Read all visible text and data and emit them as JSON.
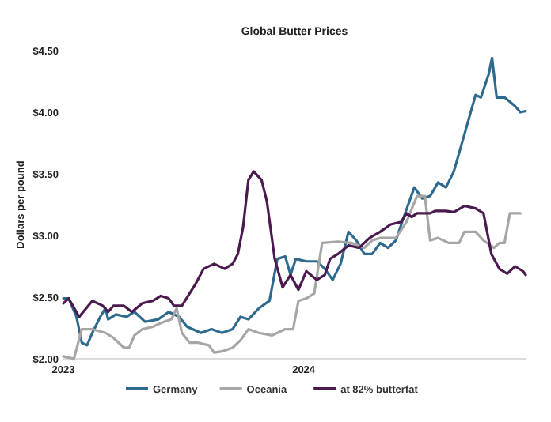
{
  "chart_data": {
    "type": "line",
    "title": "Global Butter Prices",
    "ylabel": "Dollars per pound",
    "xlim": [
      "2023-01-01",
      "2024-12-03"
    ],
    "xticks": [
      {
        "value": "2023-01-01",
        "label": "2023"
      },
      {
        "value": "2024-01-01",
        "label": "2024"
      }
    ],
    "ylim": [
      2,
      4.5
    ],
    "yticks": [
      {
        "value": 2,
        "label": "$2.00"
      },
      {
        "value": 2.5,
        "label": "$2.50"
      },
      {
        "value": 3,
        "label": "$3.00"
      },
      {
        "value": 3.5,
        "label": "$3.50"
      },
      {
        "value": 4,
        "label": "$4.00"
      },
      {
        "value": 4.5,
        "label": "$4.50"
      }
    ],
    "grid": false,
    "legend": "bottom",
    "marker": "none",
    "line_style": "solid",
    "series": [
      {
        "name": "Germany",
        "color": "#2e6a8e",
        "x": [
          "2023-01-01",
          "2023-01-09",
          "2023-01-21",
          "2023-01-29",
          "2023-02-06",
          "2023-02-14",
          "2023-02-26",
          "2023-03-06",
          "2023-03-10",
          "2023-03-22",
          "2023-04-07",
          "2023-04-19",
          "2023-05-05",
          "2023-05-25",
          "2023-06-10",
          "2023-06-26",
          "2023-07-08",
          "2023-07-29",
          "2023-08-14",
          "2023-08-30",
          "2023-09-15",
          "2023-09-27",
          "2023-10-09",
          "2023-10-25",
          "2023-11-10",
          "2023-11-22",
          "2023-12-04",
          "2023-12-12",
          "2023-12-20",
          "2024-01-05",
          "2024-01-21",
          "2024-02-02",
          "2024-02-14",
          "2024-02-26",
          "2024-03-09",
          "2024-03-21",
          "2024-04-02",
          "2024-04-14",
          "2024-04-26",
          "2024-05-08",
          "2024-05-20",
          "2024-06-01",
          "2024-06-17",
          "2024-06-29",
          "2024-07-11",
          "2024-07-23",
          "2024-08-04",
          "2024-08-16",
          "2024-09-01",
          "2024-09-18",
          "2024-09-26",
          "2024-10-08",
          "2024-10-13",
          "2024-10-20",
          "2024-11-01",
          "2024-11-17",
          "2024-11-25",
          "2024-12-03"
        ],
        "values": [
          2.49,
          2.49,
          2.34,
          2.13,
          2.11,
          2.21,
          2.34,
          2.41,
          2.32,
          2.36,
          2.34,
          2.38,
          2.3,
          2.32,
          2.38,
          2.34,
          2.26,
          2.21,
          2.24,
          2.21,
          2.24,
          2.34,
          2.32,
          2.41,
          2.47,
          2.81,
          2.83,
          2.68,
          2.81,
          2.79,
          2.79,
          2.73,
          2.64,
          2.77,
          3.03,
          2.96,
          2.85,
          2.85,
          2.94,
          2.9,
          2.96,
          3.15,
          3.39,
          3.3,
          3.32,
          3.43,
          3.39,
          3.52,
          3.82,
          4.14,
          4.12,
          4.31,
          4.44,
          4.12,
          4.12,
          4.05,
          4.0,
          4.01
        ]
      },
      {
        "name": "Oceania",
        "color": "#a6a6a6",
        "x": [
          "2023-01-01",
          "2023-01-17",
          "2023-01-29",
          "2023-02-14",
          "2023-03-06",
          "2023-03-18",
          "2023-03-26",
          "2023-04-03",
          "2023-04-11",
          "2023-04-19",
          "2023-05-01",
          "2023-05-17",
          "2023-05-29",
          "2023-06-14",
          "2023-06-22",
          "2023-06-30",
          "2023-07-12",
          "2023-07-25",
          "2023-08-10",
          "2023-08-18",
          "2023-08-30",
          "2023-09-15",
          "2023-09-27",
          "2023-10-09",
          "2023-10-25",
          "2023-11-14",
          "2023-12-04",
          "2023-12-16",
          "2023-12-24",
          "2024-01-05",
          "2024-01-17",
          "2024-01-29",
          "2024-02-22",
          "2024-03-13",
          "2024-04-02",
          "2024-04-14",
          "2024-04-26",
          "2024-05-20",
          "2024-06-05",
          "2024-06-21",
          "2024-07-03",
          "2024-07-11",
          "2024-07-23",
          "2024-08-08",
          "2024-08-24",
          "2024-09-01",
          "2024-09-18",
          "2024-09-30",
          "2024-10-16",
          "2024-10-24",
          "2024-11-01",
          "2024-11-09",
          "2024-11-25"
        ],
        "values": [
          2.02,
          2.0,
          2.24,
          2.24,
          2.21,
          2.17,
          2.13,
          2.09,
          2.09,
          2.19,
          2.24,
          2.26,
          2.29,
          2.32,
          2.41,
          2.21,
          2.13,
          2.13,
          2.11,
          2.05,
          2.06,
          2.09,
          2.15,
          2.24,
          2.21,
          2.19,
          2.24,
          2.24,
          2.47,
          2.49,
          2.53,
          2.94,
          2.95,
          2.94,
          2.9,
          2.96,
          2.98,
          2.98,
          3.11,
          3.32,
          3.32,
          2.96,
          2.98,
          2.94,
          2.94,
          3.03,
          3.03,
          2.96,
          2.9,
          2.94,
          2.94,
          3.18,
          3.18
        ]
      },
      {
        "name": "at 82% butterfat",
        "color": "#4b1a4f",
        "x": [
          "2023-01-01",
          "2023-01-09",
          "2023-01-25",
          "2023-02-14",
          "2023-03-02",
          "2023-03-10",
          "2023-03-18",
          "2023-04-03",
          "2023-04-15",
          "2023-05-01",
          "2023-05-17",
          "2023-05-29",
          "2023-06-10",
          "2023-06-18",
          "2023-06-30",
          "2023-07-20",
          "2023-08-02",
          "2023-08-18",
          "2023-09-03",
          "2023-09-15",
          "2023-09-23",
          "2023-10-01",
          "2023-10-09",
          "2023-10-17",
          "2023-10-29",
          "2023-11-06",
          "2023-11-18",
          "2023-11-30",
          "2023-12-12",
          "2023-12-24",
          "2024-01-05",
          "2024-01-21",
          "2024-02-02",
          "2024-02-10",
          "2024-02-22",
          "2024-03-09",
          "2024-03-25",
          "2024-04-10",
          "2024-04-26",
          "2024-05-12",
          "2024-05-28",
          "2024-06-05",
          "2024-06-13",
          "2024-06-21",
          "2024-07-11",
          "2024-07-19",
          "2024-08-04",
          "2024-08-16",
          "2024-09-01",
          "2024-09-18",
          "2024-09-30",
          "2024-10-12",
          "2024-10-24",
          "2024-11-05",
          "2024-11-17",
          "2024-11-29",
          "2024-12-03"
        ],
        "values": [
          2.45,
          2.49,
          2.34,
          2.47,
          2.43,
          2.38,
          2.43,
          2.43,
          2.38,
          2.45,
          2.47,
          2.51,
          2.49,
          2.43,
          2.43,
          2.6,
          2.73,
          2.77,
          2.73,
          2.77,
          2.85,
          3.07,
          3.45,
          3.52,
          3.45,
          3.28,
          2.81,
          2.58,
          2.68,
          2.56,
          2.71,
          2.64,
          2.68,
          2.81,
          2.85,
          2.92,
          2.9,
          2.98,
          3.03,
          3.09,
          3.11,
          3.18,
          3.15,
          3.18,
          3.18,
          3.2,
          3.2,
          3.19,
          3.24,
          3.22,
          3.18,
          2.85,
          2.73,
          2.69,
          2.75,
          2.71,
          2.68
        ]
      }
    ]
  }
}
